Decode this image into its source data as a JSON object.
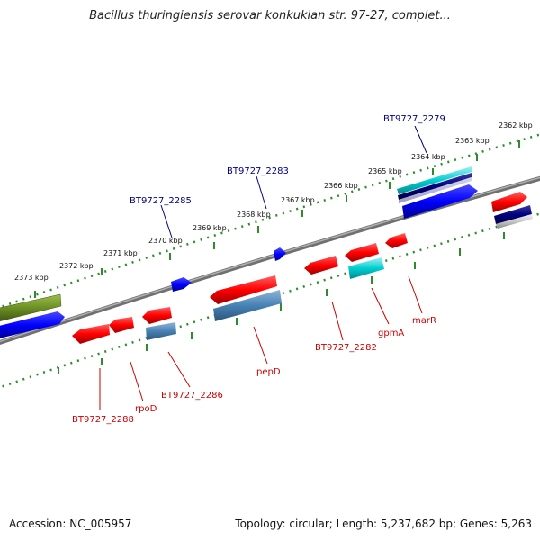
{
  "title": "Bacillus thuringiensis serovar konkukian str. 97-27, complet...",
  "footer": {
    "accession": "Accession: NC_005957",
    "summary": "Topology: circular; Length: 5,237,682 bp; Genes: 5,263"
  },
  "colors": {
    "backbone": "#808080",
    "scale_dots": "#2e8b2e",
    "forward_label": "#00008b",
    "reverse_label": "#cc0000",
    "gene_red": "#ff0000",
    "gene_blue": "#0000ff",
    "gene_steel": "#4682b4",
    "gene_cyan": "#00ced1",
    "gene_olive": "#6b8e23",
    "gene_navy": "#000080"
  },
  "scale_labels": [
    "2373 kbp",
    "2372 kbp",
    "2371 kbp",
    "2370 kbp",
    "2369 kbp",
    "2368 kbp",
    "2367 kbp",
    "2366 kbp",
    "2365 kbp",
    "2364 kbp",
    "2363 kbp",
    "2362 kbp"
  ],
  "gene_labels_top": [
    "BT9727_2285",
    "BT9727_2283",
    "BT9727_2279"
  ],
  "gene_labels_bottom": [
    "BT9727_2288",
    "rpoD",
    "BT9727_2286",
    "pepD",
    "BT9727_2282",
    "gpmA",
    "marR"
  ]
}
